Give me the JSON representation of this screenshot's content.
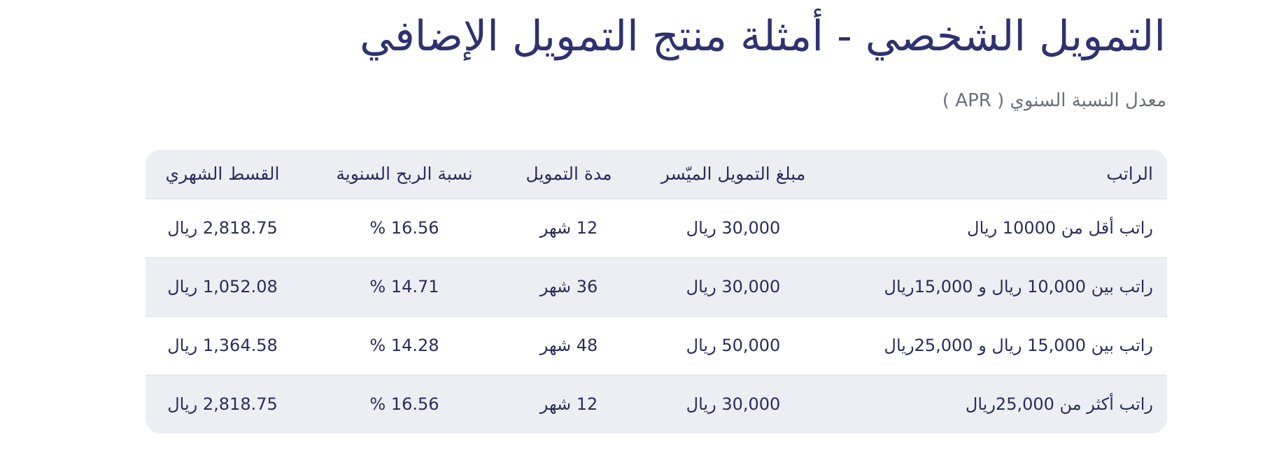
{
  "title": "التمويل الشخصي - أمثلة منتج التمويل الإضافي",
  "subtitle": "معدل النسبة السنوي ( APR )",
  "table": {
    "headers": [
      "الراتب",
      "مبلغ التمويل الميّسر",
      "مدة التمويل",
      "نسبة الربح السنوية",
      "القسط الشهري"
    ],
    "rows": [
      [
        "راتب أقل من 10000 ريال",
        "30,000 ريال",
        "12 شهر",
        "16.56 %",
        "2,818.75 ريال"
      ],
      [
        "راتب بين 10,000 ريال و 15,000ريال",
        "30,000 ريال",
        "36 شهر",
        "14.71 %",
        "1,052.08 ريال"
      ],
      [
        "راتب بين 15,000 ريال و 25,000ريال",
        "50,000 ريال",
        "48 شهر",
        "14.28 %",
        "1,364.58 ريال"
      ],
      [
        "راتب أكثر من 25,000ريال",
        "30,000 ريال",
        "12 شهر",
        "16.56 %",
        "2,818.75 ريال"
      ]
    ]
  },
  "colors": {
    "title": "#2e3270",
    "subtitle": "#6b6e7c",
    "row_alt": "#edeef3",
    "text": "#2a2d5a"
  }
}
